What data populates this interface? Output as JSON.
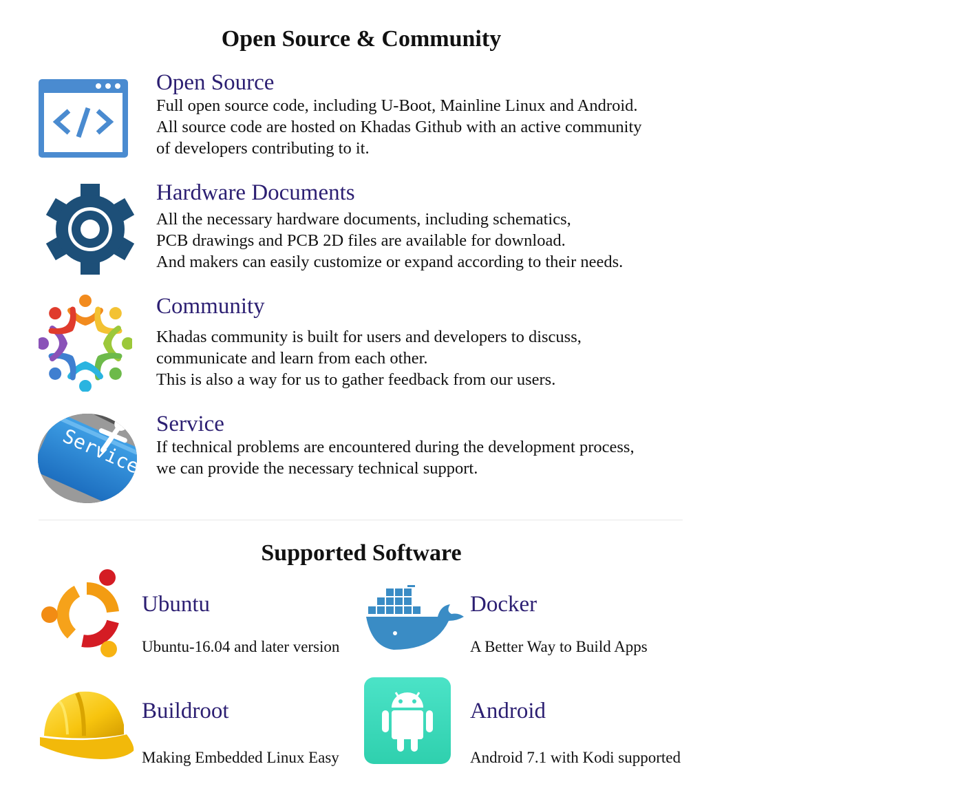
{
  "open_source_section": {
    "title": "Open Source & Community",
    "features": [
      {
        "icon": "code-window-icon",
        "title": "Open Source",
        "lines": [
          "Full open source code, including U-Boot, Mainline Linux and Android.",
          "All source code are hosted on Khadas Github with an active community",
          "of developers contributing to it."
        ]
      },
      {
        "icon": "gear-icon",
        "title": "Hardware Documents",
        "lines": [
          "All the necessary hardware documents, including schematics,",
          "PCB drawings and PCB 2D files are available for download.",
          "And makers can easily customize or expand according to their needs."
        ]
      },
      {
        "icon": "community-people-icon",
        "title": "Community",
        "lines": [
          "Khadas community is built for users and developers to discuss,",
          "communicate and learn from each other.",
          "This is also a way for us to gather feedback from our users."
        ]
      },
      {
        "icon": "service-key-icon",
        "icon_text": "Service",
        "title": "Service",
        "lines": [
          "If technical problems are encountered during the development process,",
          "we can provide the necessary technical support."
        ]
      }
    ]
  },
  "software_section": {
    "title": "Supported Software",
    "items": [
      {
        "icon": "ubuntu-logo-icon",
        "title": "Ubuntu",
        "desc": "Ubuntu-16.04 and later version"
      },
      {
        "icon": "docker-whale-icon",
        "title": "Docker",
        "desc": "A Better Way to Build Apps"
      },
      {
        "icon": "hard-hat-icon",
        "title": "Buildroot",
        "desc": "Making Embedded Linux Easy"
      },
      {
        "icon": "android-robot-icon",
        "title": "Android",
        "desc": "Android 7.1 with Kodi supported"
      }
    ]
  },
  "colors": {
    "heading_accent": "#2c1f72",
    "code_icon_blue": "#4a8bd0",
    "gear_navy": "#1d4f78",
    "docker_blue": "#3a8cc5",
    "android_teal": "#3fdcc0"
  }
}
